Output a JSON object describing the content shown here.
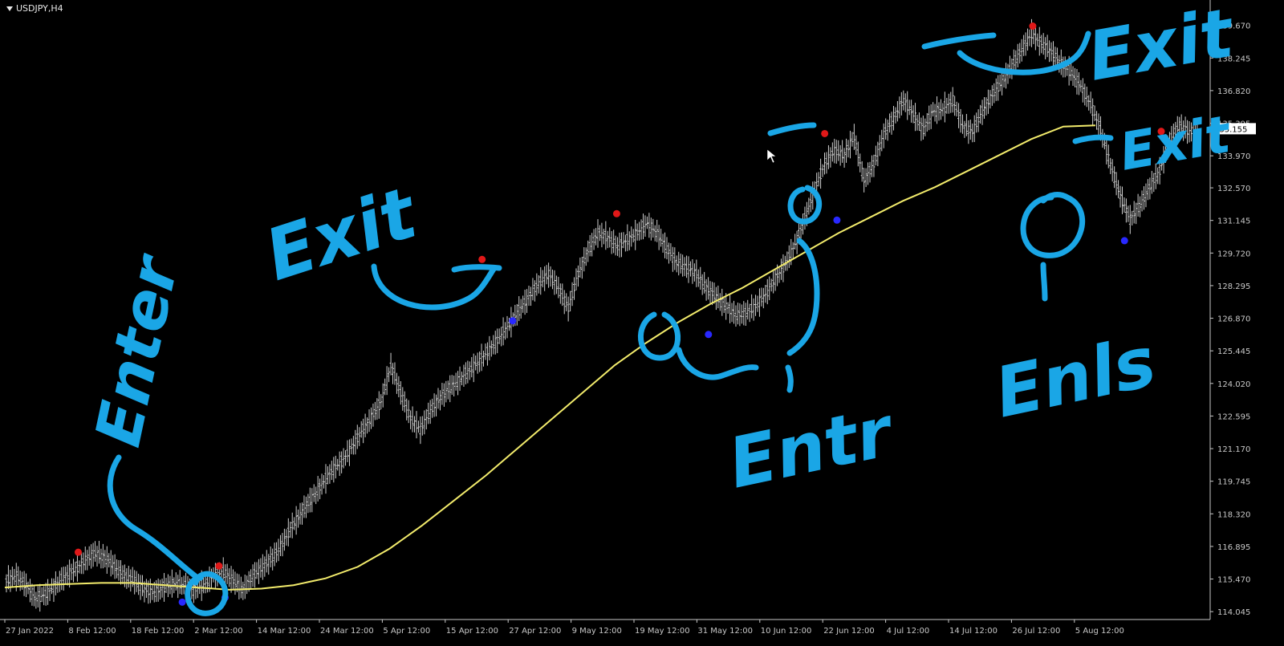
{
  "chart_title": "USDJPY,H4",
  "current_price_label": "135.155",
  "colors": {
    "background": "#000000",
    "candles": "#d0d0d0",
    "moving_average": "#f3ec6c",
    "swing_high": "#e01818",
    "swing_low": "#2828ff",
    "annotation": "#1aa6e6",
    "axis": "#c8c8c8",
    "price_box_bg": "#ffffff",
    "price_box_text": "#000000"
  },
  "chart_data": {
    "type": "line",
    "series": [
      {
        "values": [
          115.4,
          115.6,
          115.2,
          114.6,
          114.8,
          115.2,
          115.6,
          115.9,
          116.3,
          116.6,
          116.4,
          116.0,
          115.6,
          115.4,
          115.0,
          114.9,
          115.1,
          115.3,
          115.2,
          115.0,
          115.2,
          115.6,
          115.8,
          115.4,
          115.0,
          115.6,
          116.0,
          116.4,
          117.0,
          117.8,
          118.4,
          119.0,
          119.6,
          120.2,
          120.6,
          121.2,
          121.9,
          122.5,
          123.2,
          124.8,
          123.6,
          122.5,
          122.0,
          122.8,
          123.4,
          123.8,
          124.2,
          124.6,
          125.0,
          125.5,
          126.0,
          126.6,
          127.2,
          127.8,
          128.4,
          128.8,
          128.2,
          127.3,
          128.8,
          129.8,
          130.6,
          130.4,
          130.0,
          130.3,
          130.6,
          131.0,
          130.6,
          129.9,
          129.3,
          129.1,
          128.8,
          128.2,
          127.8,
          127.4,
          127.0,
          127.1,
          127.4,
          127.9,
          128.6,
          129.2,
          130.1,
          131.2,
          132.5,
          133.6,
          134.2,
          134.0,
          134.8,
          132.9,
          133.6,
          134.9,
          135.6,
          136.4,
          135.8,
          135.1,
          135.9,
          136.0,
          136.4,
          135.3,
          135.0,
          135.9,
          136.6,
          137.2,
          137.9,
          138.6,
          139.3,
          138.9,
          138.5,
          138.0,
          137.6,
          137.0,
          136.2,
          135.1,
          133.6,
          132.2,
          131.2,
          131.8,
          132.6,
          133.3,
          134.6,
          135.3,
          135.0
        ],
        "x_range": [
          "25 Jan 2022",
          "10 Aug 2022"
        ],
        "style": "ohlc-bars"
      },
      {
        "values": [
          115.1,
          115.2,
          115.25,
          115.3,
          115.3,
          115.2,
          115.1,
          115.0,
          115.05,
          115.2,
          115.5,
          116.0,
          116.8,
          117.8,
          118.9,
          120.0,
          121.2,
          122.4,
          123.6,
          124.8,
          125.8,
          126.7,
          127.5,
          128.2,
          129.0,
          129.8,
          130.6,
          131.3,
          132.0,
          132.6,
          133.3,
          134.0,
          134.7,
          135.25,
          135.3
        ],
        "x_range": [
          "25 Jan 2022",
          "10 Aug 2022"
        ],
        "style": "line"
      }
    ],
    "x_tick_labels": [
      "27 Jan 2022",
      "8 Feb 12:00",
      "18 Feb 12:00",
      "2 Mar 12:00",
      "14 Mar 12:00",
      "24 Mar 12:00",
      "5 Apr 12:00",
      "15 Apr 12:00",
      "27 Apr 12:00",
      "9 May 12:00",
      "19 May 12:00",
      "31 May 12:00",
      "10 Jun 12:00",
      "22 Jun 12:00",
      "4 Jul 12:00",
      "14 Jul 12:00",
      "26 Jul 12:00",
      "5 Aug 12:00"
    ],
    "y_tick_labels": [
      "139.670",
      "138.245",
      "136.820",
      "135.395",
      "133.970",
      "132.570",
      "131.145",
      "129.720",
      "128.295",
      "126.870",
      "125.445",
      "124.020",
      "122.595",
      "121.170",
      "119.745",
      "118.320",
      "116.895",
      "115.470",
      "114.045"
    ],
    "ylim": [
      113.7,
      140.5
    ],
    "swing_highs": [
      {
        "x": "6 Feb 2022",
        "y": 116.5
      },
      {
        "x": "1 Mar 2022",
        "y": 115.9
      },
      {
        "x": "13 Apr 2022",
        "y": 129.3
      },
      {
        "x": "5 May 2022",
        "y": 131.3
      },
      {
        "x": "8 Jun 2022",
        "y": 134.8
      },
      {
        "x": "12 Jul 2022",
        "y": 139.5
      },
      {
        "x": "2 Aug 2022",
        "y": 134.9
      }
    ],
    "swing_lows": [
      {
        "x": "23 Feb 2022",
        "y": 114.6
      },
      {
        "x": "2 Mar 2022",
        "y": 114.8
      },
      {
        "x": "18 Apr 2022",
        "y": 126.9
      },
      {
        "x": "20 May 2022",
        "y": 126.3
      },
      {
        "x": "10 Jun 2022",
        "y": 131.3
      },
      {
        "x": "27 Jul 2022",
        "y": 130.4
      }
    ],
    "annotations": [
      {
        "text": "Enter"
      },
      {
        "text": "Exit"
      },
      {
        "text": "Entr"
      },
      {
        "text": "Exit"
      },
      {
        "text": "Enls"
      },
      {
        "text": "Exit"
      }
    ]
  }
}
